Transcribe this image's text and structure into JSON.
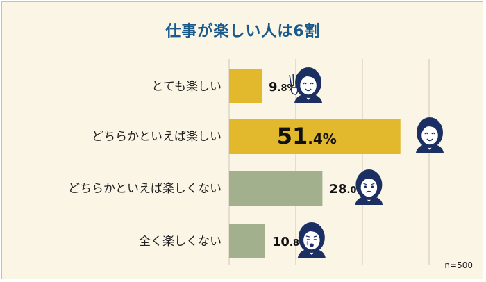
{
  "title": "仕事が楽しい人は6割",
  "note": "n=500",
  "colors": {
    "positive": "#e2b92c",
    "negative": "#a3b08e",
    "grid": "#cfc8b8",
    "title": "#1a5a8a",
    "face_hair": "#1b2f63",
    "face_skin": "#ffffff"
  },
  "chart_data": {
    "type": "bar",
    "orientation": "horizontal",
    "title": "仕事が楽しい人は6割",
    "xlim": [
      0,
      60
    ],
    "grid": true,
    "categories": [
      "とても楽しい",
      "どちらかといえば楽しい",
      "どちらかといえば楽しくない",
      "全く楽しくない"
    ],
    "values": [
      9.8,
      51.4,
      28.0,
      10.8
    ],
    "value_labels": [
      {
        "num": "9",
        "dec": ".8%"
      },
      {
        "num": "51",
        "dec": ".4%"
      },
      {
        "num": "28",
        "dec": ".0%"
      },
      {
        "num": "10",
        "dec": ".8%"
      }
    ],
    "bar_colors": [
      "positive",
      "positive",
      "negative",
      "negative"
    ],
    "face_icons": [
      "face-waving-icon",
      "face-smiling-icon",
      "face-frowning-icon",
      "face-crying-icon"
    ]
  }
}
